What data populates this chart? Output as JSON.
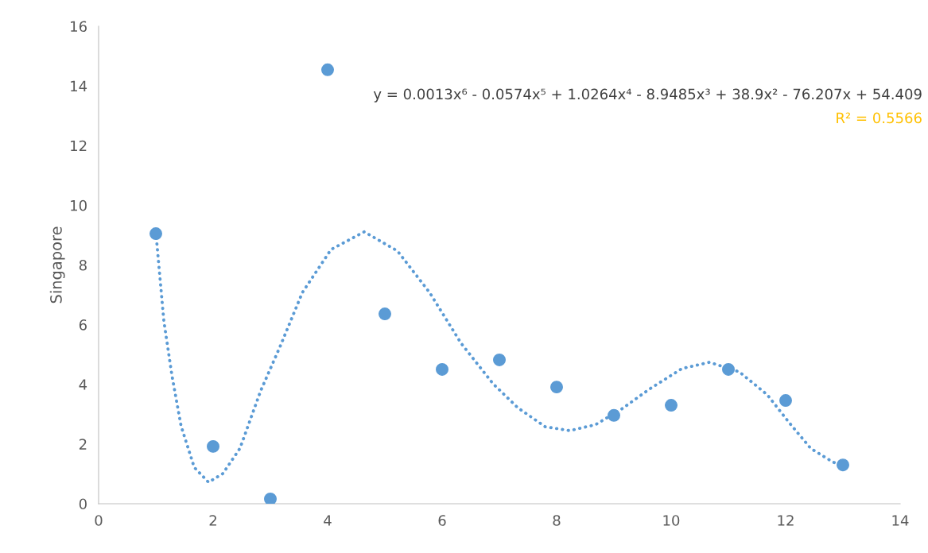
{
  "chart_data": {
    "type": "scatter",
    "ylabel": "Singapore",
    "x": [
      1,
      2,
      3,
      4,
      5,
      6,
      7,
      8,
      9,
      10,
      11,
      12,
      13
    ],
    "series": [
      {
        "color": "#5b9bd5",
        "marker": "circle",
        "values": [
          9.05,
          1.92,
          0.16,
          14.54,
          6.36,
          4.5,
          4.82,
          3.91,
          2.96,
          3.3,
          4.5,
          3.46,
          1.3
        ]
      },
      {
        "type": "line",
        "color": "#5b9bd5",
        "line_style": "dotted",
        "x": [
          1.0,
          1.14,
          1.28,
          1.44,
          1.67,
          1.92,
          2.17,
          2.47,
          2.83,
          3.17,
          3.56,
          4.06,
          4.64,
          5.22,
          5.78,
          6.33,
          6.89,
          7.32,
          7.8,
          8.23,
          8.68,
          9.14,
          9.62,
          10.19,
          10.67,
          11.19,
          11.68,
          12.06,
          12.44,
          12.83,
          13.0
        ],
        "values": [
          9.1,
          6.12,
          4.31,
          2.61,
          1.22,
          0.72,
          1.01,
          1.86,
          3.78,
          5.27,
          7.08,
          8.52,
          9.11,
          8.47,
          7.08,
          5.38,
          4.02,
          3.22,
          2.58,
          2.45,
          2.65,
          3.18,
          3.84,
          4.53,
          4.74,
          4.42,
          3.65,
          2.72,
          1.85,
          1.39,
          1.3
        ]
      }
    ],
    "xlim": [
      0,
      14
    ],
    "xticks": [
      0,
      2,
      4,
      6,
      8,
      10,
      12,
      14
    ],
    "ylim": [
      0,
      16
    ],
    "yticks": [
      0,
      2,
      4,
      6,
      8,
      10,
      12,
      14,
      16
    ],
    "grid": false,
    "annotations": [
      "y = 0.0013x⁶ - 0.0574x⁵ + 1.0264x⁴ - 8.9485x³ + 38.9x² - 76.207x + 54.409",
      "R² = 0.5566"
    ]
  }
}
